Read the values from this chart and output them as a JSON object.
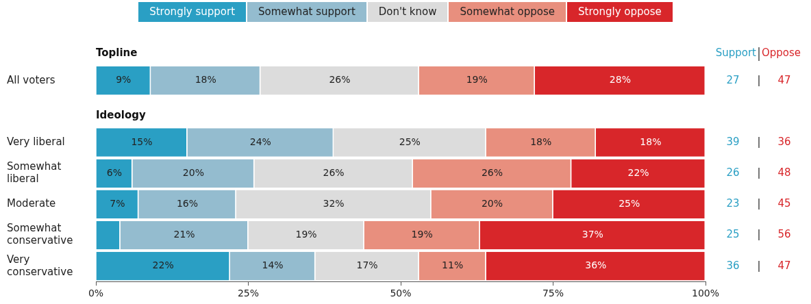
{
  "chart_data": {
    "type": "bar",
    "orientation": "horizontal",
    "stacked": true,
    "categories": [
      "Topline",
      "All voters",
      "Ideology",
      "Very liberal",
      "Somewhat\nliberal",
      "Moderate",
      "Somewhat\nconservative",
      "Very\nconservative"
    ],
    "series": [
      {
        "name": "Strongly support",
        "color": "#2a9fc4",
        "values": [
          null,
          9,
          null,
          15,
          6,
          7,
          4,
          22
        ],
        "value_labels": [
          null,
          "9%",
          null,
          "15%",
          "6%",
          "7%",
          null,
          "22%"
        ]
      },
      {
        "name": "Somewhat support",
        "color": "#94bccf",
        "values": [
          null,
          18,
          null,
          24,
          20,
          16,
          21,
          14
        ],
        "value_labels": [
          null,
          "18%",
          null,
          "24%",
          "20%",
          "16%",
          "21%",
          "14%"
        ]
      },
      {
        "name": "Don't know",
        "color": "#dcdcdc",
        "values": [
          null,
          26,
          null,
          25,
          26,
          32,
          19,
          17
        ],
        "value_labels": [
          null,
          "26%",
          null,
          "25%",
          "26%",
          "32%",
          "19%",
          "17%"
        ]
      },
      {
        "name": "Somewhat oppose",
        "color": "#e88f7e",
        "values": [
          null,
          19,
          null,
          18,
          26,
          20,
          19,
          11
        ],
        "value_labels": [
          null,
          "19%",
          null,
          "18%",
          "26%",
          "20%",
          "19%",
          "11%"
        ]
      },
      {
        "name": "Strongly oppose",
        "color": "#d8262a",
        "values": [
          null,
          28,
          null,
          18,
          22,
          25,
          37,
          36
        ],
        "value_labels": [
          null,
          "28%",
          null,
          "18%",
          "22%",
          "25%",
          "37%",
          "36%"
        ]
      }
    ],
    "totals": [
      null,
      [
        "27",
        "47"
      ],
      null,
      [
        "39",
        "36"
      ],
      [
        "26",
        "48"
      ],
      [
        "23",
        "45"
      ],
      [
        "25",
        "56"
      ],
      [
        "36",
        "47"
      ]
    ],
    "annotations": [
      "Support",
      "Oppose"
    ],
    "xlim": [
      0,
      100
    ],
    "xticks": [
      {
        "value": 0,
        "label": "0%"
      },
      {
        "value": 25,
        "label": "25%"
      },
      {
        "value": 50,
        "label": "50%"
      },
      {
        "value": 75,
        "label": "75%"
      },
      {
        "value": 100,
        "label": "100%"
      }
    ],
    "grid": false,
    "legend": "top"
  }
}
